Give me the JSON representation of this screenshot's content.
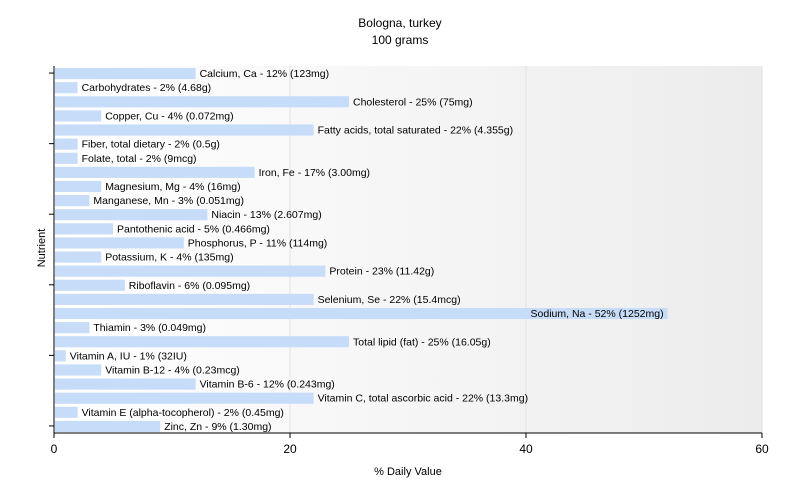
{
  "title": "Bologna, turkey",
  "subtitle": "100 grams",
  "chart_data": {
    "type": "bar",
    "orientation": "horizontal",
    "title": "Bologna, turkey",
    "subtitle": "100 grams",
    "xlabel": "% Daily Value",
    "ylabel": "Nutrient",
    "xlim": [
      0,
      60
    ],
    "xticks": [
      "0",
      "20",
      "40",
      "60"
    ],
    "grid": true,
    "bar_color": "#c6dcf8",
    "categories": [
      "Calcium, Ca",
      "Carbohydrates",
      "Cholesterol",
      "Copper, Cu",
      "Fatty acids, total saturated",
      "Fiber, total dietary",
      "Folate, total",
      "Iron, Fe",
      "Magnesium, Mg",
      "Manganese, Mn",
      "Niacin",
      "Pantothenic acid",
      "Phosphorus, P",
      "Potassium, K",
      "Protein",
      "Riboflavin",
      "Selenium, Se",
      "Sodium, Na",
      "Thiamin",
      "Total lipid (fat)",
      "Vitamin A, IU",
      "Vitamin B-12",
      "Vitamin B-6",
      "Vitamin C, total ascorbic acid",
      "Vitamin E (alpha-tocopherol)",
      "Zinc, Zn"
    ],
    "values": [
      12,
      2,
      25,
      4,
      22,
      2,
      2,
      17,
      4,
      3,
      13,
      5,
      11,
      4,
      23,
      6,
      22,
      52,
      3,
      25,
      1,
      4,
      12,
      22,
      2,
      9
    ],
    "labels": [
      "Calcium, Ca - 12% (123mg)",
      "Carbohydrates - 2% (4.68g)",
      "Cholesterol - 25% (75mg)",
      "Copper, Cu - 4% (0.072mg)",
      "Fatty acids, total saturated - 22% (4.355g)",
      "Fiber, total dietary - 2% (0.5g)",
      "Folate, total - 2% (9mcg)",
      "Iron, Fe - 17% (3.00mg)",
      "Magnesium, Mg - 4% (16mg)",
      "Manganese, Mn - 3% (0.051mg)",
      "Niacin - 13% (2.607mg)",
      "Pantothenic acid - 5% (0.466mg)",
      "Phosphorus, P - 11% (114mg)",
      "Potassium, K - 4% (135mg)",
      "Protein - 23% (11.42g)",
      "Riboflavin - 6% (0.095mg)",
      "Selenium, Se - 22% (15.4mcg)",
      "Sodium, Na - 52% (1252mg)",
      "Thiamin - 3% (0.049mg)",
      "Total lipid (fat) - 25% (16.05g)",
      "Vitamin A, IU - 1% (32IU)",
      "Vitamin B-12 - 4% (0.23mcg)",
      "Vitamin B-6 - 12% (0.243mg)",
      "Vitamin C, total ascorbic acid - 22% (13.3mg)",
      "Vitamin E (alpha-tocopherol) - 2% (0.45mg)",
      "Zinc, Zn - 9% (1.30mg)"
    ]
  }
}
